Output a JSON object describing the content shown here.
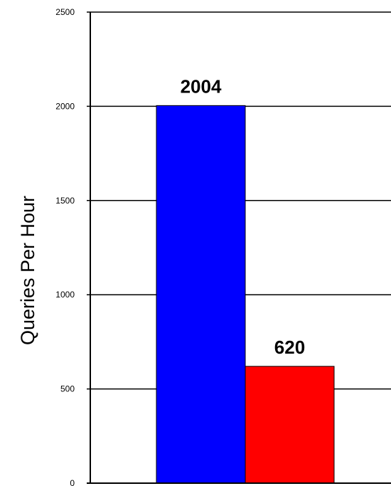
{
  "chart_data": {
    "type": "bar",
    "categories": [
      "",
      ""
    ],
    "values": [
      2004,
      620
    ],
    "colors": [
      "#0000FF",
      "#FF0000"
    ],
    "data_labels": [
      "2004",
      "620"
    ],
    "title": "",
    "xlabel": "",
    "ylabel": "Queries Per Hour",
    "ylim": [
      0,
      2500
    ],
    "yticks": [
      0,
      500,
      1000,
      1500,
      2000,
      2500
    ],
    "ytick_labels": [
      "0",
      "500",
      "1000",
      "1500",
      "2000",
      "2500"
    ],
    "grid": "horizontal",
    "legend": "none"
  }
}
